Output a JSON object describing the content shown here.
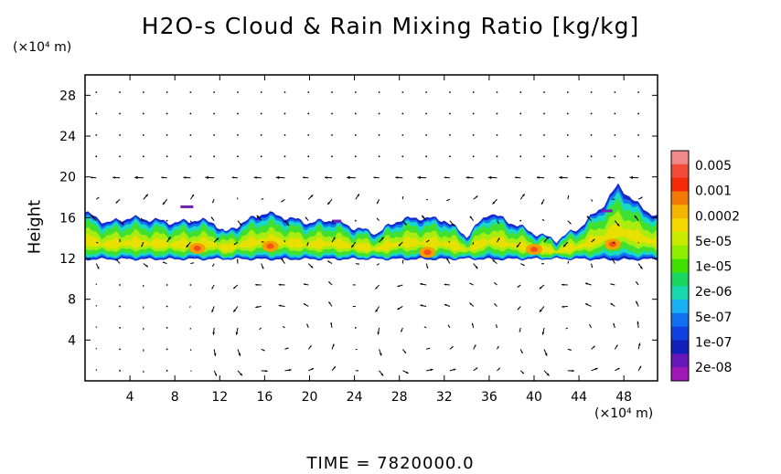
{
  "chart_data": {
    "type": "heatmap",
    "title": "H2O-s Cloud & Rain Mixing Ratio [kg/kg]",
    "ylabel": "Height",
    "x_unit": "(×10⁴ m)",
    "y_unit": "(×10⁴ m)",
    "x_ticks": [
      4,
      8,
      12,
      16,
      20,
      24,
      28,
      32,
      36,
      40,
      44,
      48
    ],
    "y_ticks": [
      4,
      8,
      12,
      16,
      20,
      24,
      28
    ],
    "xlim": [
      0,
      51
    ],
    "ylim": [
      0,
      30
    ],
    "footer": "TIME = 7820000.0",
    "colorbar": {
      "labels": [
        "0.005",
        "0.001",
        "0.0002",
        "5e-05",
        "1e-05",
        "2e-06",
        "5e-07",
        "1e-07",
        "2e-08"
      ],
      "colors": [
        "#f08a8a",
        "#f44a3a",
        "#f42a08",
        "#f47a08",
        "#f4b400",
        "#f4d800",
        "#c8ec00",
        "#8ef000",
        "#40e000",
        "#18d860",
        "#18d8b0",
        "#18b0f0",
        "#1070f0",
        "#1040e0",
        "#1020b8",
        "#6818b8",
        "#a018b8"
      ]
    },
    "cloud_layer": {
      "base_height": 12,
      "top_height_profile": [
        [
          0,
          16.5
        ],
        [
          2,
          15.5
        ],
        [
          4,
          16
        ],
        [
          6,
          15.8
        ],
        [
          8,
          15.5
        ],
        [
          10,
          15.8
        ],
        [
          11.5,
          15.5
        ],
        [
          12.5,
          14.5
        ],
        [
          14,
          15.5
        ],
        [
          16,
          16.5
        ],
        [
          18,
          16
        ],
        [
          20,
          15.5
        ],
        [
          22,
          15.8
        ],
        [
          24,
          15
        ],
        [
          26,
          14.5
        ],
        [
          28,
          15.8
        ],
        [
          30,
          16
        ],
        [
          32,
          15.8
        ],
        [
          34,
          14.2
        ],
        [
          36,
          16.5
        ],
        [
          38,
          15.5
        ],
        [
          40,
          14.5
        ],
        [
          42,
          13.8
        ],
        [
          44,
          15
        ],
        [
          46,
          17
        ],
        [
          47.5,
          19.2
        ],
        [
          49,
          17.5
        ],
        [
          51,
          16
        ]
      ]
    }
  }
}
